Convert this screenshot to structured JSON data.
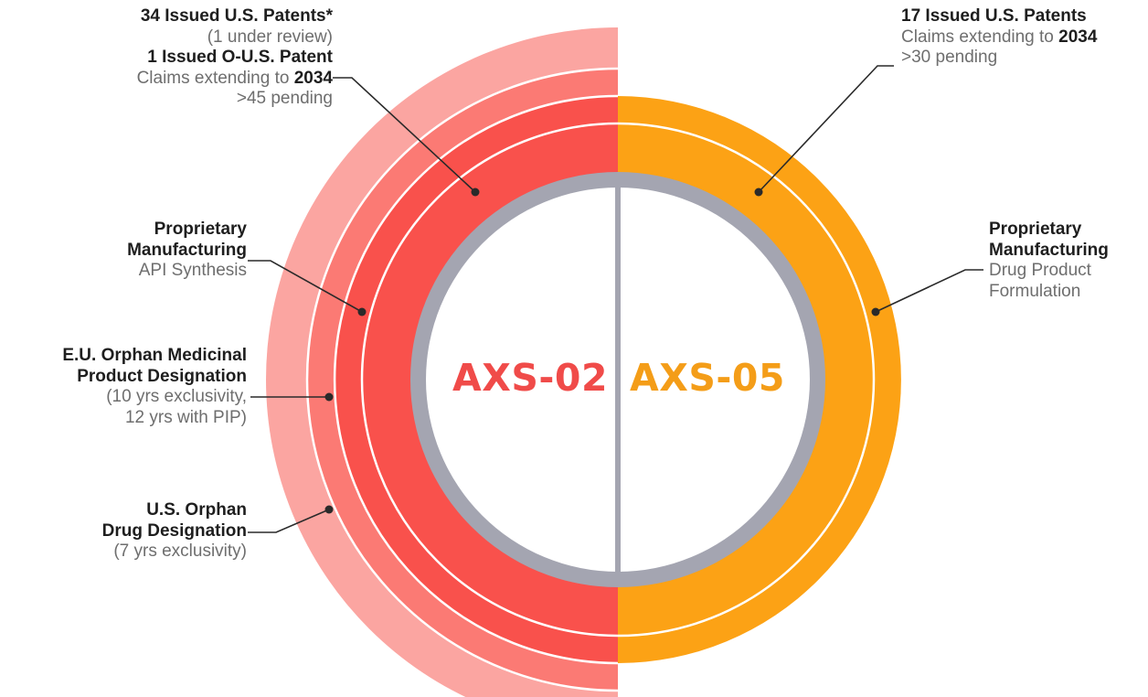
{
  "colors": {
    "axs02_band_outer": "#fba5a1",
    "axs02_band_middle": "#fb7a74",
    "axs02_band_inner": "#f9514c",
    "axs05_band": "#fca215",
    "gray_ring": "#a4a5b1",
    "center_fill": "#ffffff",
    "axs02_text": "#f04b49",
    "axs05_text": "#f49d18",
    "connector": "#2a2a2a"
  },
  "products": {
    "left": {
      "name": "AXS-02"
    },
    "right": {
      "name": "AXS-05"
    }
  },
  "left_labels": {
    "patents": {
      "us_title": "34 Issued U.S. Patents*",
      "us_note": "(1 under review)",
      "ous_title": "1 Issued O-U.S. Patent",
      "claims_prefix": "Claims extending to ",
      "claims_year": "2034",
      "pending": ">45 pending"
    },
    "manufacturing": {
      "title_line1": "Proprietary",
      "title_line2": "Manufacturing",
      "subtitle": "API Synthesis"
    },
    "eu_orphan": {
      "title_line1": "E.U. Orphan Medicinal",
      "title_line2": "Product Designation",
      "detail_line1": "(10 yrs exclusivity,",
      "detail_line2": "12 yrs with PIP)"
    },
    "us_orphan": {
      "title_line1": "U.S. Orphan",
      "title_line2": "Drug Designation",
      "detail": "(7 yrs exclusivity)"
    }
  },
  "right_labels": {
    "patents": {
      "title": "17 Issued U.S. Patents",
      "claims_prefix": "Claims extending to ",
      "claims_year": "2034",
      "pending": ">30 pending"
    },
    "manufacturing": {
      "title_line1": "Proprietary",
      "title_line2": "Manufacturing",
      "subtitle_line1": "Drug Product",
      "subtitle_line2": "Formulation"
    }
  }
}
